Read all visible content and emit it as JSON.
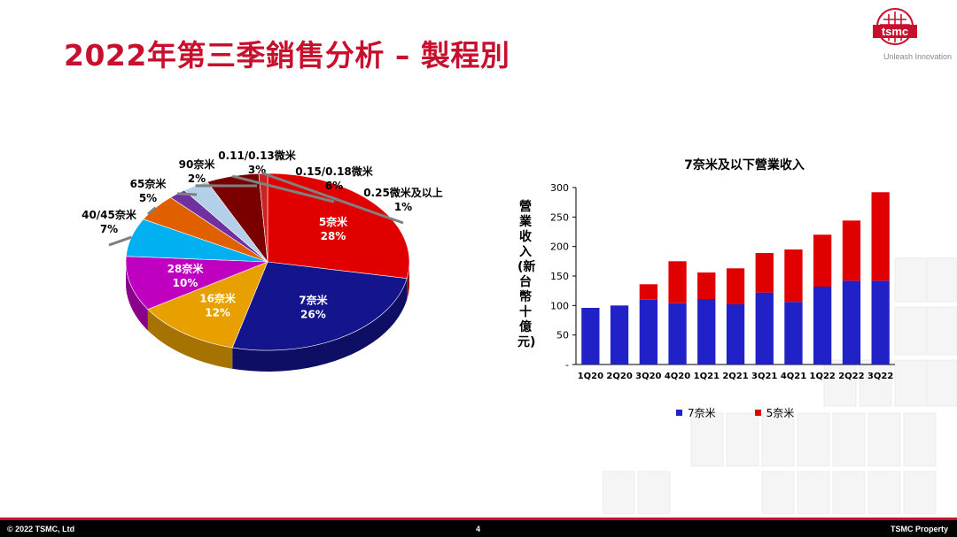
{
  "slide": {
    "title": "2022年第三季銷售分析 – 製程別",
    "logo_text": "tsmc",
    "tagline": "Unleash Innovation",
    "footer_left": "© 2022 TSMC, Ltd",
    "page_number": "4",
    "footer_right": "TSMC Property"
  },
  "chart_data": [
    {
      "type": "pie",
      "slices": [
        {
          "label": "5奈米",
          "value": 28,
          "pct_label": "28%",
          "color": "#e00000",
          "label_inside": true
        },
        {
          "label": "7奈米",
          "value": 26,
          "pct_label": "26%",
          "color": "#14148c",
          "label_inside": true
        },
        {
          "label": "16奈米",
          "value": 12,
          "pct_label": "12%",
          "color": "#e8a000",
          "label_inside": true
        },
        {
          "label": "28奈米",
          "value": 10,
          "pct_label": "10%",
          "color": "#c000c0",
          "label_inside": true
        },
        {
          "label": "40/45奈米",
          "value": 7,
          "pct_label": "7%",
          "color": "#00b0f0",
          "label_inside": false
        },
        {
          "label": "65奈米",
          "value": 5,
          "pct_label": "5%",
          "color": "#e06000",
          "label_inside": false
        },
        {
          "label": "90奈米",
          "value": 2,
          "pct_label": "2%",
          "color": "#7030a0",
          "label_inside": false
        },
        {
          "label": "0.11/0.13微米",
          "value": 3,
          "pct_label": "3%",
          "color": "#b4d0e8",
          "label_inside": false
        },
        {
          "label": "0.15/0.18微米",
          "value": 6,
          "pct_label": "6%",
          "color": "#7a0000",
          "label_inside": false
        },
        {
          "label": "0.25微米及以上",
          "value": 1,
          "pct_label": "1%",
          "color": "#cc2222",
          "label_inside": false
        }
      ]
    },
    {
      "type": "bar",
      "stacked": true,
      "title": "7奈米及以下營業收入",
      "ylabel": "營業收入(新台幣十億元)",
      "categories": [
        "1Q20",
        "2Q20",
        "3Q20",
        "4Q20",
        "1Q21",
        "2Q21",
        "3Q21",
        "4Q21",
        "1Q22",
        "2Q22",
        "3Q22"
      ],
      "series": [
        {
          "name": "7奈米",
          "color": "#2121c8",
          "values": [
            96,
            100,
            110,
            104,
            111,
            102,
            122,
            106,
            132,
            142,
            142
          ]
        },
        {
          "name": "5奈米",
          "color": "#e00000",
          "values": [
            0,
            0,
            26,
            71,
            45,
            61,
            67,
            89,
            88,
            102,
            150
          ]
        }
      ],
      "ylim": [
        0,
        300
      ],
      "yticks": [
        "-",
        "50",
        "100",
        "150",
        "200",
        "250",
        "300"
      ],
      "grid": false,
      "legend_position": "bottom"
    }
  ]
}
